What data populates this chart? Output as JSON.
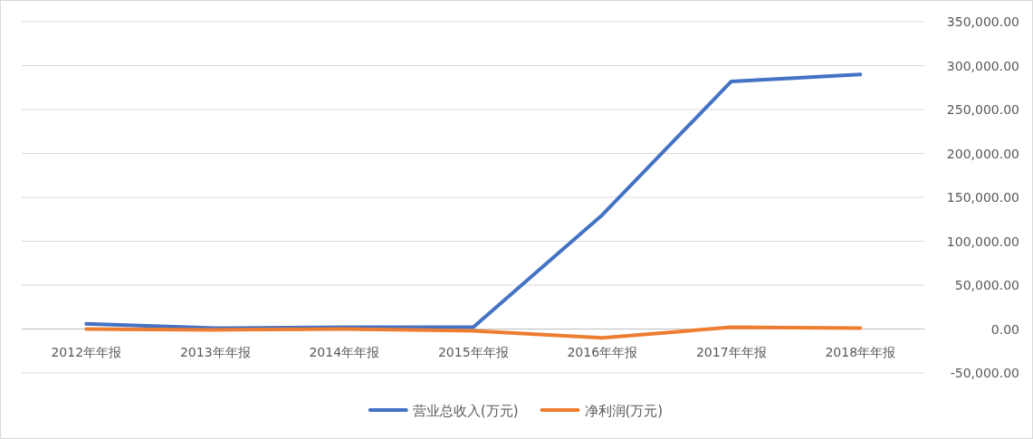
{
  "chart_data": {
    "type": "line",
    "categories": [
      "2012年年报",
      "2013年年报",
      "2014年年报",
      "2015年年报",
      "2016年年报",
      "2017年年报",
      "2018年年报"
    ],
    "series": [
      {
        "name": "营业总收入(万元)",
        "color": "#4472c4",
        "values": [
          6000,
          1000,
          2000,
          2000,
          130000,
          282000,
          290000
        ]
      },
      {
        "name": "净利润(万元)",
        "color": "#ed7d31",
        "values": [
          0,
          -1000,
          0,
          -2000,
          -10000,
          2000,
          1000
        ]
      }
    ],
    "ylim": [
      -50000,
      350000
    ],
    "yticks": [
      {
        "value": -50000,
        "label": "-50,000.00"
      },
      {
        "value": 0,
        "label": "0.00"
      },
      {
        "value": 50000,
        "label": "50,000.00"
      },
      {
        "value": 100000,
        "label": "100,000.00"
      },
      {
        "value": 150000,
        "label": "150,000.00"
      },
      {
        "value": 200000,
        "label": "200,000.00"
      },
      {
        "value": 250000,
        "label": "250,000.00"
      },
      {
        "value": 300000,
        "label": "300,000.00"
      },
      {
        "value": 350000,
        "label": "350,000.00"
      }
    ],
    "grid": "y",
    "legend": "bottom"
  }
}
